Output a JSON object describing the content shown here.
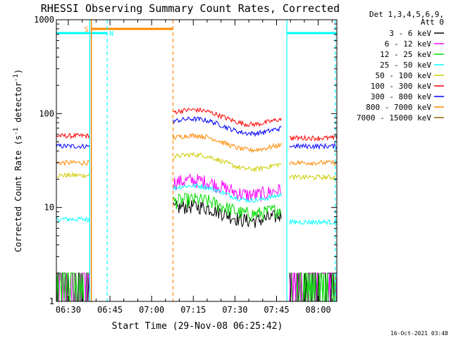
{
  "chart_data": {
    "type": "line",
    "title": "RHESSI Observing Summary Count Rates, Corrected",
    "xlabel": "Start Time (29-Nov-08 06:25:42)",
    "ylabel_main": "Corrected Count Rate (s",
    "ylabel_sup1": "-1",
    "ylabel_mid": " detector",
    "ylabel_sup2": "-1",
    "ylabel_end": ")",
    "yscale": "log",
    "ylim": [
      1,
      1000
    ],
    "xlim_minutes": [
      0,
      101
    ],
    "yticks": [
      {
        "v": 1,
        "label": "1"
      },
      {
        "v": 10,
        "label": "10"
      },
      {
        "v": 100,
        "label": "100"
      },
      {
        "v": 1000,
        "label": "1000"
      }
    ],
    "xticks": [
      {
        "m": 4.3,
        "label": "06:30"
      },
      {
        "m": 19.3,
        "label": "06:45"
      },
      {
        "m": 34.3,
        "label": "07:00"
      },
      {
        "m": 49.3,
        "label": "07:15"
      },
      {
        "m": 64.3,
        "label": "07:30"
      },
      {
        "m": 79.3,
        "label": "07:45"
      },
      {
        "m": 94.3,
        "label": "08:00"
      }
    ],
    "legend_header": [
      "Det 1,3,4,5,6,9,",
      "Att 0"
    ],
    "series": [
      {
        "name": "3 - 6 keV",
        "color": "#000000"
      },
      {
        "name": "6 - 12 keV",
        "color": "#ff00ff"
      },
      {
        "name": "12 - 25 keV",
        "color": "#00dd00"
      },
      {
        "name": "25 - 50 keV",
        "color": "#00ffff"
      },
      {
        "name": "50 - 100 keV",
        "color": "#cccc00"
      },
      {
        "name": "100 - 300 keV",
        "color": "#ff0000"
      },
      {
        "name": "300 - 800 keV",
        "color": "#0000ff"
      },
      {
        "name": "800 - 7000 keV",
        "color": "#ff8800"
      },
      {
        "name": "7000 - 15000 keV",
        "color": "#886600"
      }
    ],
    "segments": [
      {
        "x": [
          0,
          12
        ],
        "levels": {
          "3 - 6 keV": 1.5,
          "6 - 12 keV": 1.5,
          "12 - 25 keV": 1.5,
          "25 - 50 keV": 7.5,
          "50 - 100 keV": 22,
          "100 - 300 keV": 58,
          "300 - 800 keV": 45,
          "800 - 7000 keV": 30
        }
      },
      {
        "x": [
          42,
          81
        ],
        "levels": {
          "3 - 6 keV": 8.5,
          "6 - 12 keV": 16,
          "12 - 25 keV": 10,
          "25 - 50 keV": 14,
          "50 - 100 keV": 30,
          "100 - 300 keV": 90,
          "300 - 800 keV": 72,
          "800 - 7000 keV": 48
        }
      },
      {
        "x": [
          84,
          101
        ],
        "levels": {
          "3 - 6 keV": 1.5,
          "6 - 12 keV": 1.5,
          "12 - 25 keV": 1.5,
          "25 - 50 keV": 7,
          "50 - 100 keV": 21,
          "100 - 300 keV": 55,
          "300 - 800 keV": 45,
          "800 - 7000 keV": 30
        }
      }
    ],
    "flags": {
      "saa_label": "S",
      "night_label": "N",
      "saa_color": "#ff8800",
      "night_color": "#00ffff",
      "saa_bar_minutes": [
        12.6,
        42
      ],
      "night_bars_minutes": [
        [
          0,
          18.3
        ],
        [
          83,
          101
        ]
      ],
      "orange_solid_minutes": [
        12.6
      ],
      "orange_dashed_minutes": [
        42
      ],
      "cyan_solid_minutes": [
        12,
        83
      ],
      "cyan_dashed_minutes": [
        18.3,
        100.5
      ]
    },
    "timestamp": "16-Oct-2021 03:48"
  }
}
